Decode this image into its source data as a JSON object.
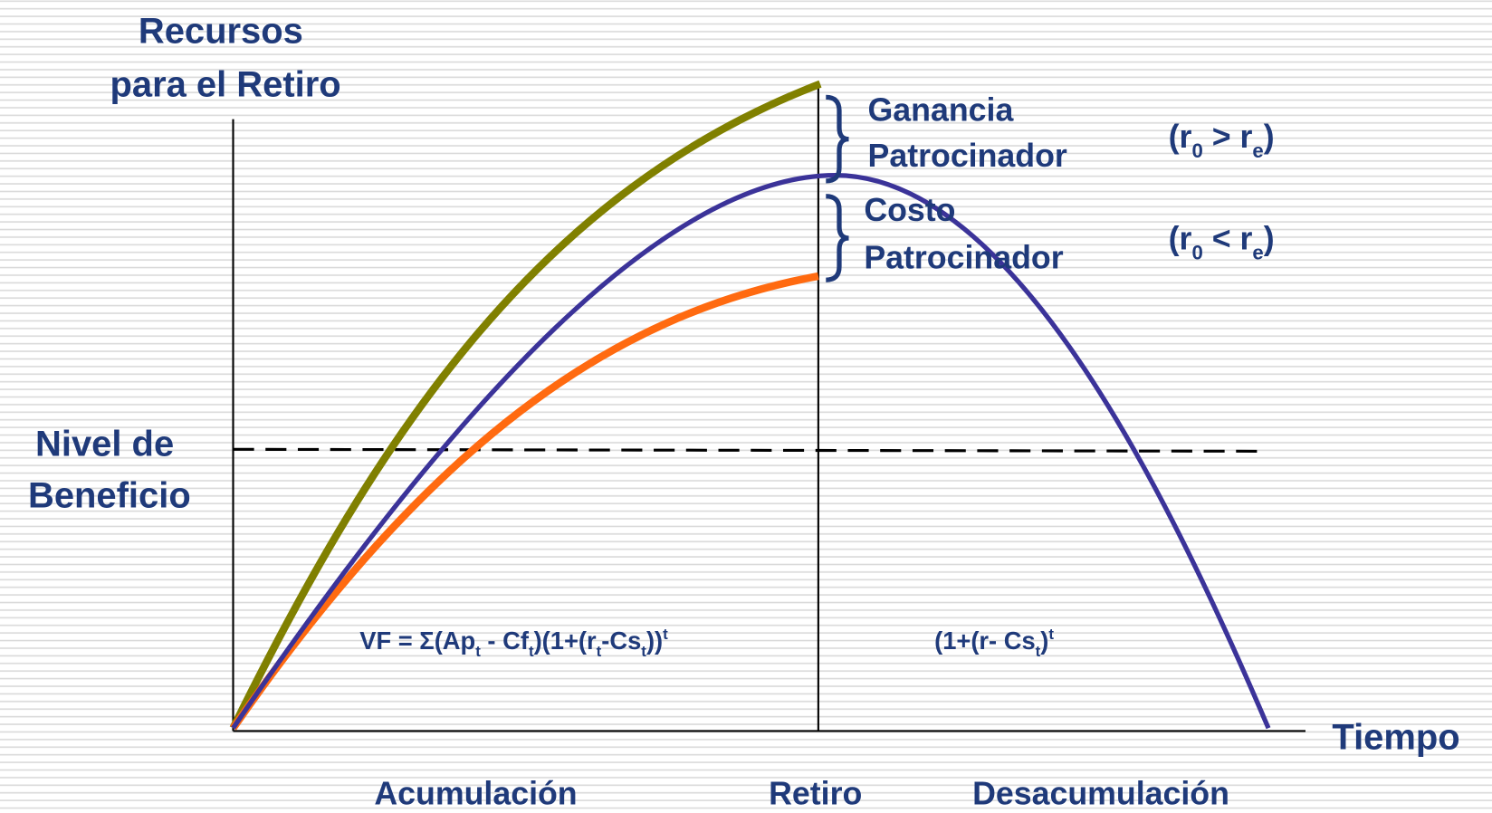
{
  "y_axis_label": [
    "Recursos",
    "para el Retiro"
  ],
  "level_label": [
    "Nivel de",
    "Beneficio"
  ],
  "gain_label": [
    "Ganancia",
    "Patrocinador"
  ],
  "cost_label": [
    "Costo",
    "Patrocinador"
  ],
  "gain_condition": [
    {
      "text": "(r"
    },
    {
      "text": "0",
      "script": "sub"
    },
    {
      "text": " > r"
    },
    {
      "text": "e",
      "script": "sub"
    },
    {
      "text": ")"
    }
  ],
  "cost_condition": [
    {
      "text": "(r"
    },
    {
      "text": "0",
      "script": "sub"
    },
    {
      "text": " < r"
    },
    {
      "text": "e",
      "script": "sub"
    },
    {
      "text": ")"
    }
  ],
  "accumulation_formula": [
    {
      "text": "VF = Σ(Ap"
    },
    {
      "text": "t",
      "script": "sub"
    },
    {
      "text": " - Cf"
    },
    {
      "text": "t",
      "script": "sub"
    },
    {
      "text": ")(1+(r"
    },
    {
      "text": "t",
      "script": "sub"
    },
    {
      "text": "-Cs"
    },
    {
      "text": "t",
      "script": "sub"
    },
    {
      "text": "))"
    },
    {
      "text": "t",
      "script": "sup"
    }
  ],
  "decumulation_formula": [
    {
      "text": "(1+(r- Cs"
    },
    {
      "text": "t",
      "script": "sub"
    },
    {
      "text": ")"
    },
    {
      "text": "t",
      "script": "sup"
    }
  ],
  "x_axis_label": "Tiempo",
  "phases": [
    "Acumulación",
    "Retiro",
    "Desacumulación"
  ]
}
